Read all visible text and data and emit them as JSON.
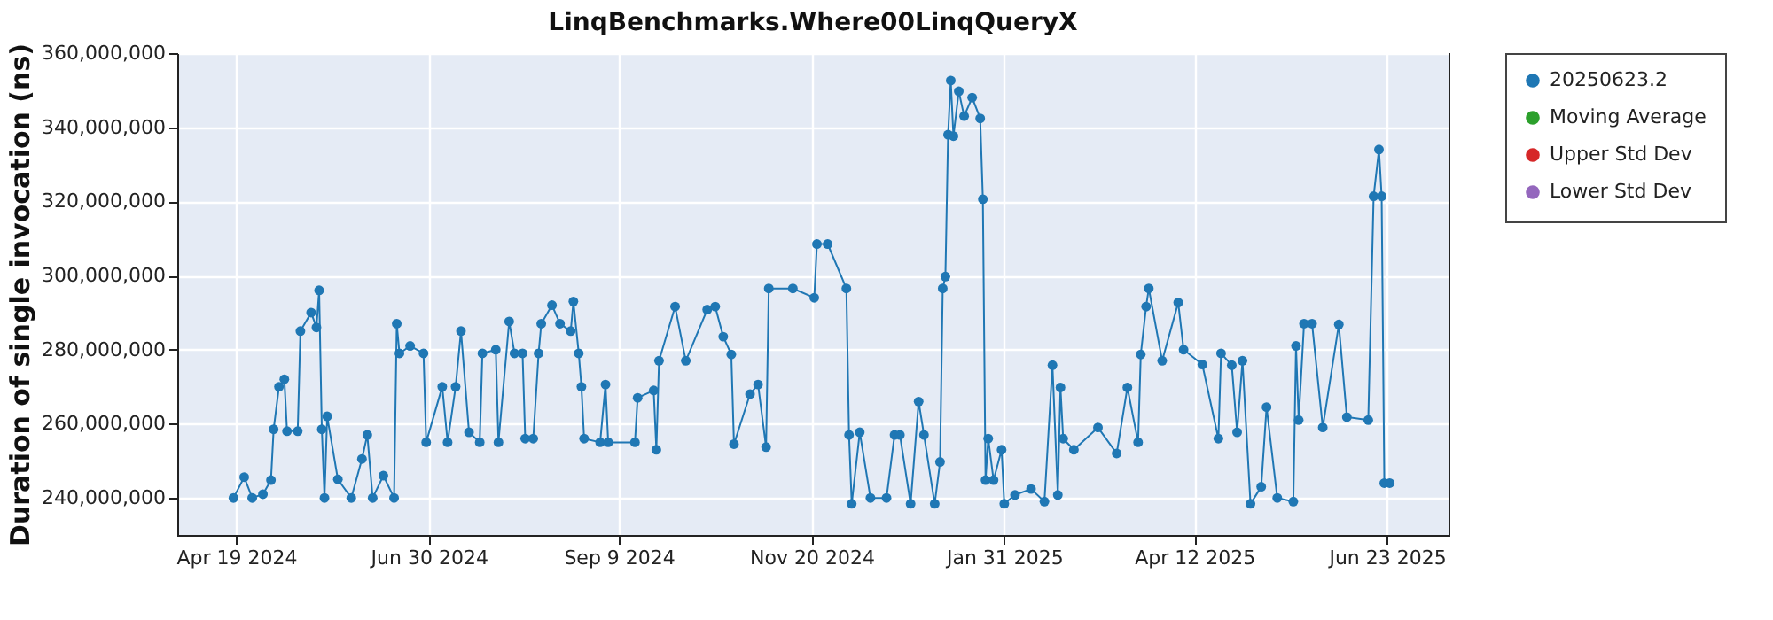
{
  "chart_data": {
    "type": "line",
    "title": "LinqBenchmarks.Where00LinqQueryX",
    "ylabel": "Duration of single invocation (ns)",
    "xlim": [
      "2024-03-28",
      "2025-07-16"
    ],
    "xticks": [
      {
        "value": "2024-04-19",
        "label": "Apr 19 2024"
      },
      {
        "value": "2024-06-30",
        "label": "Jun 30 2024"
      },
      {
        "value": "2024-09-09",
        "label": "Sep 9 2024"
      },
      {
        "value": "2024-11-20",
        "label": "Nov 20 2024"
      },
      {
        "value": "2025-01-31",
        "label": "Jan 31 2025"
      },
      {
        "value": "2025-04-12",
        "label": "Apr 12 2025"
      },
      {
        "value": "2025-06-23",
        "label": "Jun 23 2025"
      }
    ],
    "ylim": [
      230000000,
      360000000
    ],
    "yticks": [
      {
        "value": 240000000,
        "label": "240,000,000"
      },
      {
        "value": 260000000,
        "label": "260,000,000"
      },
      {
        "value": 280000000,
        "label": "280,000,000"
      },
      {
        "value": 300000000,
        "label": "300,000,000"
      },
      {
        "value": 320000000,
        "label": "320,000,000"
      },
      {
        "value": 340000000,
        "label": "340,000,000"
      },
      {
        "value": 360000000,
        "label": "360,000,000"
      }
    ],
    "grid": true,
    "legend": "right",
    "marker": "circle",
    "line_style": "solid",
    "series": [
      {
        "name": "20250623.2",
        "color": "#1f77b4",
        "x": [
          "2024-04-18",
          "2024-04-22",
          "2024-04-25",
          "2024-04-29",
          "2024-05-02",
          "2024-05-03",
          "2024-05-05",
          "2024-05-07",
          "2024-05-08",
          "2024-05-12",
          "2024-05-13",
          "2024-05-17",
          "2024-05-19",
          "2024-05-20",
          "2024-05-21",
          "2024-05-22",
          "2024-05-23",
          "2024-05-27",
          "2024-06-01",
          "2024-06-05",
          "2024-06-07",
          "2024-06-09",
          "2024-06-13",
          "2024-06-17",
          "2024-06-18",
          "2024-06-19",
          "2024-06-23",
          "2024-06-28",
          "2024-06-29",
          "2024-07-05",
          "2024-07-07",
          "2024-07-10",
          "2024-07-12",
          "2024-07-15",
          "2024-07-19",
          "2024-07-20",
          "2024-07-25",
          "2024-07-26",
          "2024-07-30",
          "2024-08-01",
          "2024-08-04",
          "2024-08-05",
          "2024-08-08",
          "2024-08-10",
          "2024-08-11",
          "2024-08-15",
          "2024-08-18",
          "2024-08-22",
          "2024-08-23",
          "2024-08-25",
          "2024-08-26",
          "2024-08-27",
          "2024-09-02",
          "2024-09-04",
          "2024-09-05",
          "2024-09-15",
          "2024-09-16",
          "2024-09-22",
          "2024-09-23",
          "2024-09-24",
          "2024-09-30",
          "2024-10-04",
          "2024-10-12",
          "2024-10-15",
          "2024-10-18",
          "2024-10-21",
          "2024-10-22",
          "2024-10-28",
          "2024-10-31",
          "2024-11-03",
          "2024-11-04",
          "2024-11-13",
          "2024-11-21",
          "2024-11-22",
          "2024-11-26",
          "2024-12-03",
          "2024-12-04",
          "2024-12-05",
          "2024-12-08",
          "2024-12-12",
          "2024-12-18",
          "2024-12-21",
          "2024-12-23",
          "2024-12-27",
          "2024-12-30",
          "2025-01-01",
          "2025-01-05",
          "2025-01-07",
          "2025-01-08",
          "2025-01-09",
          "2025-01-10",
          "2025-01-11",
          "2025-01-12",
          "2025-01-14",
          "2025-01-16",
          "2025-01-19",
          "2025-01-22",
          "2025-01-23",
          "2025-01-24",
          "2025-01-25",
          "2025-01-27",
          "2025-01-30",
          "2025-01-31",
          "2025-02-04",
          "2025-02-10",
          "2025-02-15",
          "2025-02-18",
          "2025-02-20",
          "2025-02-21",
          "2025-02-22",
          "2025-02-26",
          "2025-03-07",
          "2025-03-14",
          "2025-03-18",
          "2025-03-22",
          "2025-03-23",
          "2025-03-25",
          "2025-03-26",
          "2025-03-31",
          "2025-04-06",
          "2025-04-08",
          "2025-04-15",
          "2025-04-21",
          "2025-04-22",
          "2025-04-26",
          "2025-04-28",
          "2025-04-30",
          "2025-05-03",
          "2025-05-07",
          "2025-05-09",
          "2025-05-13",
          "2025-05-19",
          "2025-05-20",
          "2025-05-21",
          "2025-05-23",
          "2025-05-26",
          "2025-05-30",
          "2025-06-05",
          "2025-06-08",
          "2025-06-16",
          "2025-06-18",
          "2025-06-20",
          "2025-06-21",
          "2025-06-22",
          "2025-06-24"
        ],
        "values": [
          240000000,
          245600000,
          240000000,
          241000000,
          244800000,
          258500000,
          270000000,
          272000000,
          258000000,
          258000000,
          285000000,
          290000000,
          286000000,
          296000000,
          258500000,
          240000000,
          262000000,
          245000000,
          240000000,
          250500000,
          257000000,
          240000000,
          246000000,
          240000000,
          287000000,
          279000000,
          281000000,
          279000000,
          255000000,
          270000000,
          255000000,
          270000000,
          285000000,
          257700000,
          255000000,
          279000000,
          280000000,
          255000000,
          287600000,
          279000000,
          279000000,
          256000000,
          256000000,
          279000000,
          287000000,
          292000000,
          287000000,
          285000000,
          293000000,
          279000000,
          270000000,
          256000000,
          255000000,
          270600000,
          255000000,
          255000000,
          267000000,
          269000000,
          253000000,
          277000000,
          291600000,
          277000000,
          290800000,
          291600000,
          283500000,
          278700000,
          254500000,
          268000000,
          270600000,
          253700000,
          296500000,
          296500000,
          294000000,
          308500000,
          308500000,
          296500000,
          257000000,
          238400000,
          257700000,
          240000000,
          240000000,
          257000000,
          257000000,
          238400000,
          266000000,
          257000000,
          238400000,
          249700000,
          296500000,
          299700000,
          338000000,
          352600000,
          337600000,
          349700000,
          343000000,
          348000000,
          342400000,
          320600000,
          244800000,
          256000000,
          244800000,
          253000000,
          238400000,
          240800000,
          242400000,
          239000000,
          275800000,
          240800000,
          269800000,
          256000000,
          253000000,
          259000000,
          252000000,
          269800000,
          255000000,
          278700000,
          291600000,
          296500000,
          277000000,
          292700000,
          280000000,
          276000000,
          256000000,
          279000000,
          275800000,
          257700000,
          277000000,
          238400000,
          243000000,
          264500000,
          240000000,
          239000000,
          281000000,
          261000000,
          287000000,
          287000000,
          259000000,
          286800000,
          261800000,
          261000000,
          321400000,
          334000000,
          321400000,
          244000000,
          244000000
        ]
      },
      {
        "name": "Moving Average",
        "color": "#2ca02c"
      },
      {
        "name": "Upper Std Dev",
        "color": "#d62728"
      },
      {
        "name": "Lower Std Dev",
        "color": "#9467bd"
      }
    ]
  }
}
